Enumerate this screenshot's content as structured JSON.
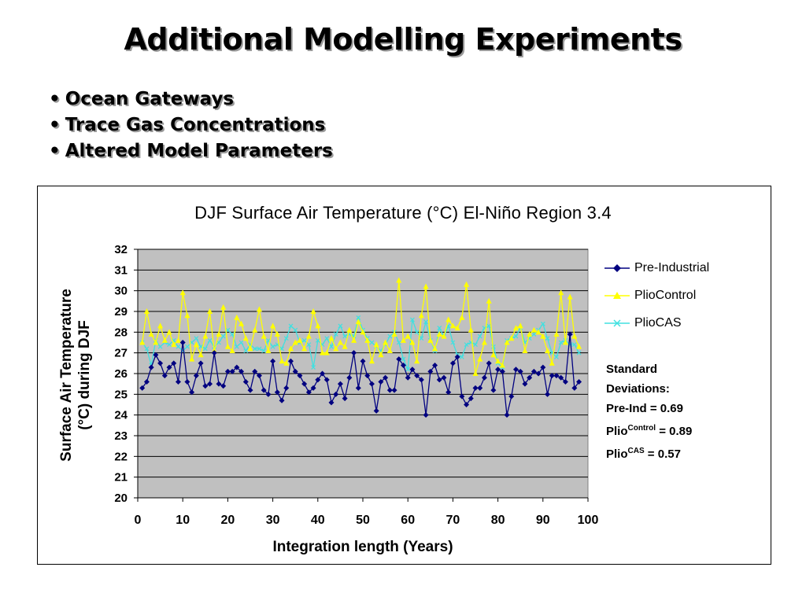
{
  "slide": {
    "title": "Additional Modelling Experiments",
    "bullet_symbol": "•",
    "bullets": [
      "Ocean Gateways",
      "Trace Gas Concentrations",
      "Altered Model Parameters"
    ]
  },
  "chart_data": {
    "type": "line",
    "title": "DJF Surface Air Temperature (°C) El-Niño Region 3.4",
    "xlabel": "Integration length (Years)",
    "ylabel_line1": "Surface Air Temperature",
    "ylabel_line2": "(°C) during DJF",
    "xlim": [
      0,
      100
    ],
    "ylim": [
      20,
      32
    ],
    "xticks": [
      "0",
      "10",
      "20",
      "30",
      "40",
      "50",
      "60",
      "70",
      "80",
      "90",
      "100"
    ],
    "yticks": [
      "20",
      "21",
      "22",
      "23",
      "24",
      "25",
      "26",
      "27",
      "28",
      "29",
      "30",
      "31",
      "32"
    ],
    "grid": true,
    "legend_position": "right",
    "plot_background": "#c0c0c0",
    "x": [
      1,
      2,
      3,
      4,
      5,
      6,
      7,
      8,
      9,
      10,
      11,
      12,
      13,
      14,
      15,
      16,
      17,
      18,
      19,
      20,
      21,
      22,
      23,
      24,
      25,
      26,
      27,
      28,
      29,
      30,
      31,
      32,
      33,
      34,
      35,
      36,
      37,
      38,
      39,
      40,
      41,
      42,
      43,
      44,
      45,
      46,
      47,
      48,
      49,
      50,
      51,
      52,
      53,
      54,
      55,
      56,
      57,
      58,
      59,
      60,
      61,
      62,
      63,
      64,
      65,
      66,
      67,
      68,
      69,
      70,
      71,
      72,
      73,
      74,
      75,
      76,
      77,
      78,
      79,
      80,
      81,
      82,
      83,
      84,
      85,
      86,
      87,
      88,
      89,
      90,
      91,
      92,
      93,
      94,
      95,
      96,
      97,
      98
    ],
    "series": [
      {
        "name": "Pre-Industrial",
        "color": "#000080",
        "marker": "diamond",
        "values": [
          25.3,
          25.6,
          26.3,
          26.9,
          26.5,
          25.9,
          26.3,
          26.5,
          25.6,
          27.5,
          25.6,
          25.1,
          25.9,
          26.5,
          25.4,
          25.5,
          27.0,
          25.5,
          25.4,
          26.1,
          26.1,
          26.3,
          26.1,
          25.6,
          25.2,
          26.1,
          25.9,
          25.2,
          25.0,
          26.6,
          25.1,
          24.7,
          25.3,
          26.6,
          26.1,
          25.9,
          25.5,
          25.1,
          25.3,
          25.7,
          26.0,
          25.7,
          24.6,
          25.0,
          25.5,
          24.8,
          25.8,
          27.0,
          25.3,
          26.6,
          25.9,
          25.5,
          24.2,
          25.6,
          25.8,
          25.2,
          25.2,
          26.7,
          26.4,
          25.8,
          26.2,
          25.9,
          25.7,
          24.0,
          26.1,
          26.4,
          25.7,
          25.8,
          25.1,
          26.5,
          26.8,
          24.9,
          24.5,
          24.8,
          25.3,
          25.3,
          25.8,
          26.5,
          25.2,
          26.2,
          26.1,
          24.0,
          24.9,
          26.2,
          26.1,
          25.5,
          25.8,
          26.1,
          26.0,
          26.3,
          25.0,
          25.9,
          25.9,
          25.8,
          25.6,
          27.9,
          25.3,
          25.6
        ]
      },
      {
        "name": "PlioControl",
        "color": "#ffff00",
        "marker": "triangle",
        "values": [
          27.5,
          29.0,
          27.9,
          27.5,
          28.3,
          27.6,
          28.0,
          27.4,
          27.6,
          29.9,
          28.8,
          26.7,
          27.4,
          26.9,
          27.8,
          29.0,
          27.1,
          27.9,
          29.2,
          27.3,
          27.1,
          28.7,
          28.4,
          27.7,
          27.2,
          28.1,
          29.1,
          27.8,
          27.1,
          28.3,
          27.9,
          26.6,
          26.5,
          27.2,
          27.5,
          27.6,
          27.2,
          27.8,
          29.0,
          28.3,
          27.0,
          27.0,
          27.7,
          27.2,
          27.5,
          27.3,
          28.1,
          27.6,
          28.5,
          28.0,
          27.6,
          26.6,
          27.4,
          26.9,
          27.5,
          27.1,
          27.9,
          30.5,
          27.6,
          27.8,
          27.5,
          26.6,
          28.8,
          30.2,
          27.6,
          27.2,
          27.9,
          27.8,
          28.6,
          28.3,
          28.2,
          28.7,
          30.3,
          28.1,
          26.0,
          26.7,
          27.5,
          29.5,
          26.9,
          26.6,
          26.4,
          27.5,
          27.7,
          28.2,
          28.3,
          27.1,
          27.9,
          28.1,
          28.0,
          27.8,
          27.1,
          26.5,
          27.9,
          29.9,
          27.5,
          29.7,
          27.8,
          27.3
        ]
      },
      {
        "name": "PlioCAS",
        "color": "#40e0e0",
        "marker": "asterisk",
        "values": [
          27.5,
          27.2,
          26.4,
          27.6,
          27.3,
          27.5,
          27.4,
          27.6,
          27.3,
          27.1,
          27.3,
          27.5,
          27.7,
          27.3,
          27.2,
          27.6,
          27.3,
          27.5,
          27.8,
          28.1,
          27.9,
          27.3,
          27.5,
          27.1,
          27.4,
          27.2,
          27.2,
          27.1,
          27.6,
          27.3,
          27.4,
          27.2,
          27.7,
          28.3,
          28.1,
          27.5,
          27.6,
          27.4,
          26.3,
          27.6,
          27.4,
          27.7,
          27.3,
          27.9,
          28.3,
          27.8,
          27.9,
          27.8,
          28.7,
          28.1,
          27.7,
          27.5,
          27.3,
          27.1,
          27.4,
          27.8,
          28.0,
          27.5,
          26.7,
          26.2,
          28.6,
          28.0,
          27.7,
          28.5,
          27.6,
          27.1,
          28.2,
          27.8,
          28.3,
          27.5,
          26.9,
          26.8,
          27.4,
          27.5,
          27.4,
          27.8,
          28.2,
          28.3,
          27.3,
          26.5,
          26.3,
          27.6,
          27.7,
          27.8,
          28.2,
          27.5,
          27.7,
          27.9,
          28.1,
          28.4,
          27.7,
          27.0,
          26.8,
          27.5,
          27.6,
          27.4,
          27.4,
          27.0
        ]
      }
    ]
  },
  "stats": {
    "heading_line1": "Standard",
    "heading_line2": "Deviations:",
    "preind": "Pre-Ind = 0.69",
    "plio_prefix1": "Plio",
    "plio_sup1": "Control",
    "plio_val1": " = 0.89",
    "plio_prefix2": "Plio",
    "plio_sup2": "CAS",
    "plio_val2": " = 0.57"
  }
}
